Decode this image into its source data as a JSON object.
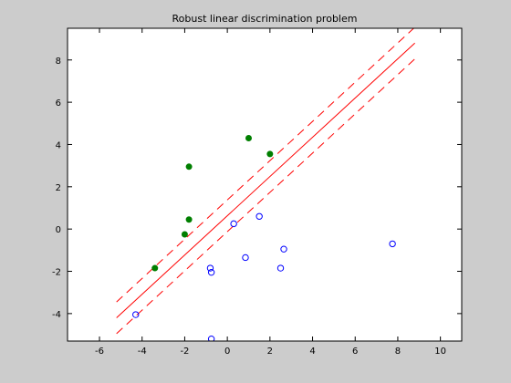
{
  "chart_data": {
    "type": "scatter",
    "title": "Robust linear discrimination problem",
    "xlabel": "",
    "ylabel": "",
    "xlim": [
      -7.5,
      11
    ],
    "ylim": [
      -5.3,
      9.5
    ],
    "xticks": [
      "-6",
      "-4",
      "-2",
      "0",
      "2",
      "4",
      "6",
      "8",
      "10"
    ],
    "yticks": [
      "-4",
      "-2",
      "0",
      "2",
      "4",
      "6",
      "8"
    ],
    "grid": false,
    "colors": {
      "filled": "#007f00",
      "open": "#0000ff",
      "lines": "#ff0000",
      "axes_bg": "#ffffff",
      "figure_bg": "#cccccc"
    },
    "series": [
      {
        "marker": "filled-circle",
        "points": [
          {
            "x": -3.4,
            "y": -1.85
          },
          {
            "x": -2.0,
            "y": -0.25
          },
          {
            "x": -1.8,
            "y": 0.45
          },
          {
            "x": -1.8,
            "y": 2.95
          },
          {
            "x": 1.0,
            "y": 4.3
          },
          {
            "x": 2.0,
            "y": 3.55
          }
        ]
      },
      {
        "marker": "open-circle",
        "points": [
          {
            "x": -4.3,
            "y": -4.05
          },
          {
            "x": -0.8,
            "y": -1.85
          },
          {
            "x": -0.75,
            "y": -2.05
          },
          {
            "x": -0.75,
            "y": -5.2
          },
          {
            "x": 0.3,
            "y": 0.25
          },
          {
            "x": 0.85,
            "y": -1.35
          },
          {
            "x": 1.5,
            "y": 0.6
          },
          {
            "x": 2.5,
            "y": -1.85
          },
          {
            "x": 2.65,
            "y": -0.95
          },
          {
            "x": 7.75,
            "y": -0.7
          }
        ]
      }
    ],
    "lines": [
      {
        "style": "solid",
        "x": [
          -5.2,
          8.8
        ],
        "y": [
          -4.2,
          8.8
        ]
      },
      {
        "style": "dashed",
        "x": [
          -5.2,
          8.8
        ],
        "y": [
          -3.45,
          9.55
        ]
      },
      {
        "style": "dashed",
        "x": [
          -5.2,
          8.8
        ],
        "y": [
          -4.95,
          8.05
        ]
      }
    ]
  }
}
